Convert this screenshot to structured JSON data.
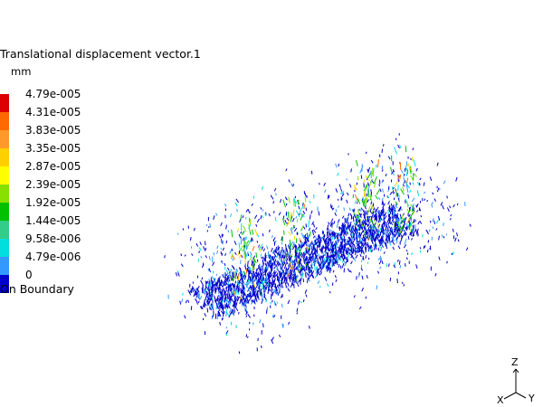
{
  "legend": {
    "title": "Translational displacement vector.1",
    "unit": "mm",
    "levels": [
      {
        "label": "4.79e-005",
        "color": "#dd0000"
      },
      {
        "label": "4.31e-005",
        "color": "#ff6a00"
      },
      {
        "label": "3.83e-005",
        "color": "#ff9a2a"
      },
      {
        "label": "3.35e-005",
        "color": "#ffd000"
      },
      {
        "label": "2.87e-005",
        "color": "#ffff00"
      },
      {
        "label": "2.39e-005",
        "color": "#88e000"
      },
      {
        "label": "1.92e-005",
        "color": "#00c000"
      },
      {
        "label": "1.44e-005",
        "color": "#33cc88"
      },
      {
        "label": "9.58e-006",
        "color": "#00dddd"
      },
      {
        "label": "4.79e-006",
        "color": "#3399ff"
      },
      {
        "label": "0",
        "color": "#0000cc"
      }
    ],
    "footer": "On Boundary"
  },
  "triad": {
    "axis_z": "Z",
    "axis_x": "X",
    "axis_y": "Y"
  }
}
